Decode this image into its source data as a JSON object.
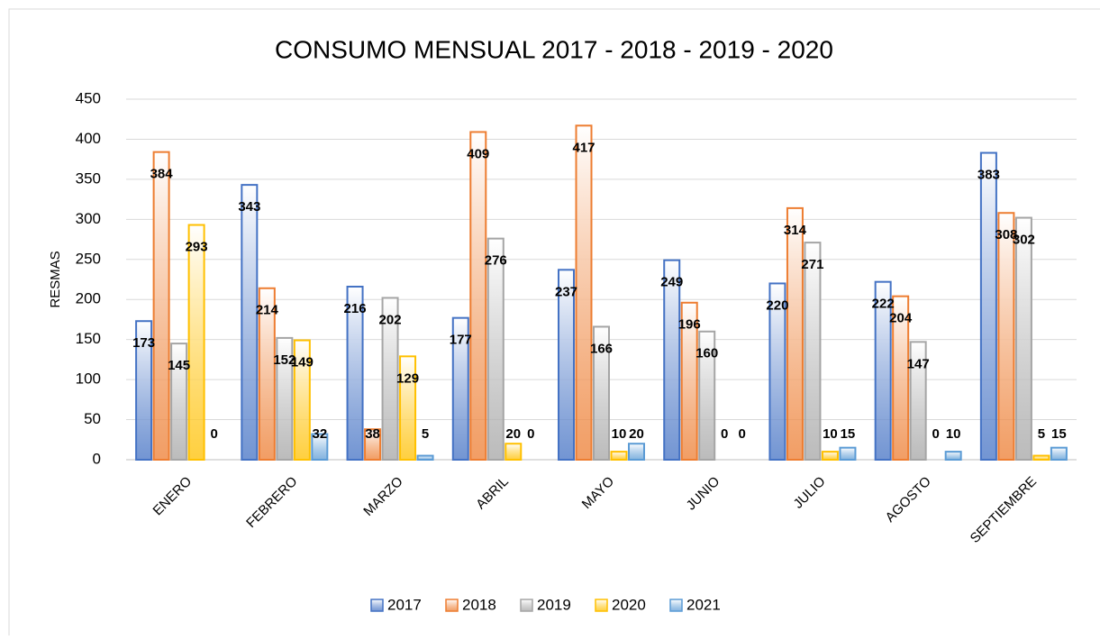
{
  "chart_data": {
    "type": "bar",
    "title": "CONSUMO  MENSUAL 2017 - 2018 - 2019 - 2020",
    "y_label": "RESMAS",
    "categories": [
      "ENERO",
      "FEBRERO",
      "MARZO",
      "ABRIL",
      "MAYO",
      "JUNIO",
      "JULIO",
      "AGOSTO",
      "SEPTIEMBRE"
    ],
    "series": [
      {
        "name": "2017",
        "color": "#4472c4",
        "values": [
          173,
          343,
          216,
          177,
          237,
          249,
          220,
          222,
          383
        ]
      },
      {
        "name": "2018",
        "color": "#ed7d31",
        "values": [
          384,
          214,
          38,
          409,
          417,
          196,
          314,
          204,
          308
        ]
      },
      {
        "name": "2019",
        "color": "#a5a5a5",
        "values": [
          145,
          152,
          202,
          276,
          166,
          160,
          271,
          147,
          302
        ]
      },
      {
        "name": "2020",
        "color": "#ffc000",
        "values": [
          293,
          149,
          129,
          20,
          10,
          0,
          10,
          0,
          5
        ]
      },
      {
        "name": "2021",
        "color": "#5b9bd5",
        "values": [
          0,
          32,
          5,
          0,
          20,
          0,
          15,
          10,
          15
        ]
      }
    ],
    "ylim": [
      0,
      450
    ],
    "yticks": [
      0,
      50,
      100,
      150,
      200,
      250,
      300,
      350,
      400,
      450
    ],
    "grid": true,
    "legend": "bottom"
  }
}
